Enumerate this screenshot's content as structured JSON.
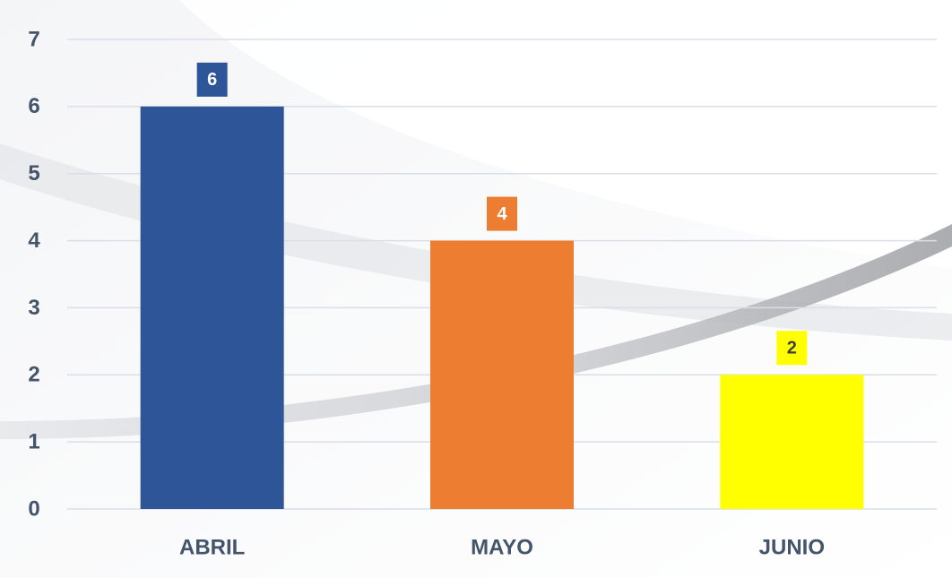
{
  "chart_data": {
    "type": "bar",
    "categories": [
      "ABRIL",
      "MAYO",
      "JUNIO"
    ],
    "values": [
      6,
      4,
      2
    ],
    "colors": [
      "#2e5597",
      "#ed7d31",
      "#ffff00"
    ],
    "ylim": [
      0,
      7
    ],
    "yticks": [
      0,
      1,
      2,
      3,
      4,
      5,
      6,
      7
    ],
    "grid": true
  }
}
